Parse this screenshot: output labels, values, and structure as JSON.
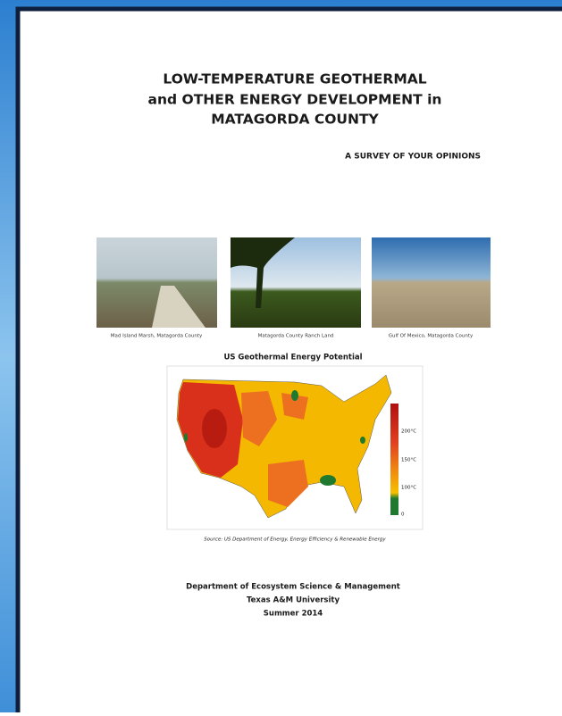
{
  "header": {
    "title_lines": [
      "LOW-TEMPERATURE GEOTHERMAL",
      "and OTHER ENERGY DEVELOPMENT in",
      "MATAGORDA COUNTY"
    ],
    "subtitle": "A SURVEY OF YOUR OPINIONS"
  },
  "photos": [
    {
      "caption": "Mad Island Marsh, Matagorda County"
    },
    {
      "caption": "Matagorda County Ranch Land"
    },
    {
      "caption": "Gulf Of Mexico, Matagorda County"
    }
  ],
  "map": {
    "title": "US Geothermal Energy Potential",
    "legend_labels": [
      "200°C",
      "150°C",
      "100°C",
      "0"
    ],
    "source": "Source: US Department of Energy, Energy Efficiency & Renewable Energy"
  },
  "footer": {
    "lines": [
      "Department of Ecosystem Science & Management",
      "Texas A&M University",
      "Summer 2014"
    ]
  }
}
